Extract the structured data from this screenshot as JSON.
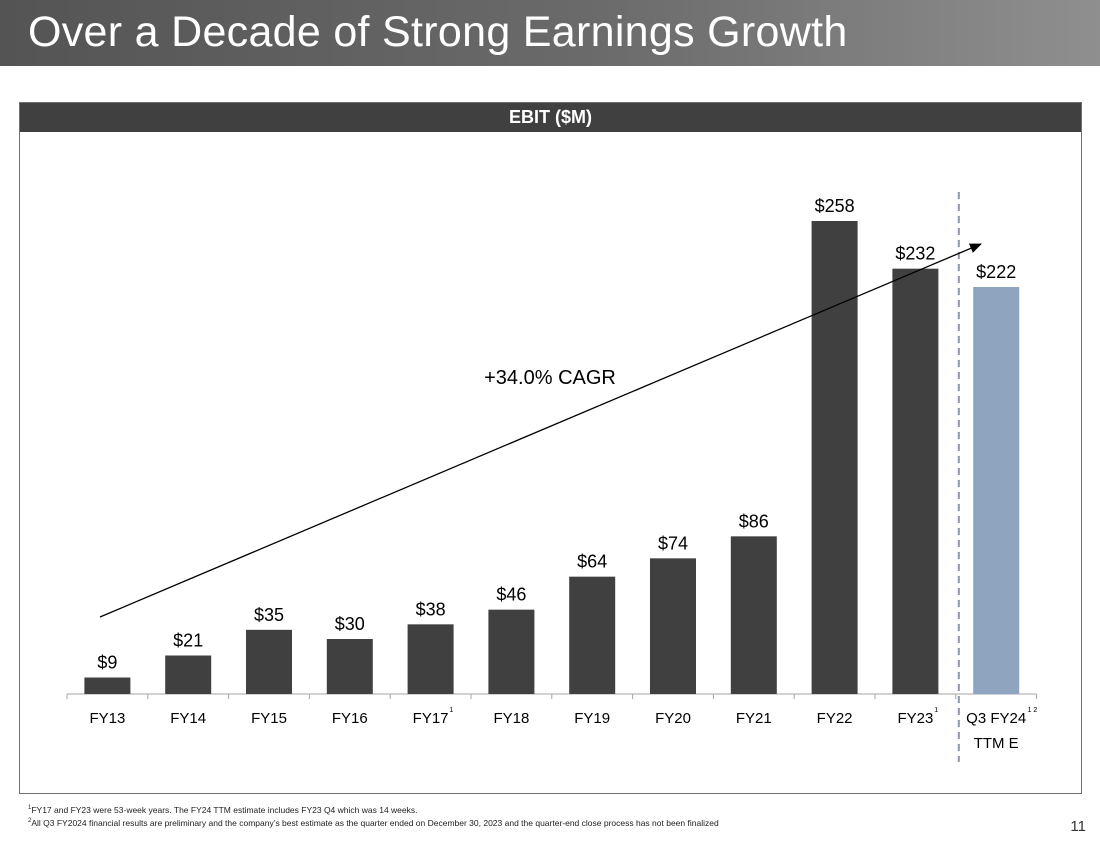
{
  "slide": {
    "title": "Over a Decade of Strong Earnings Growth",
    "page_number": "11"
  },
  "footnotes": [
    {
      "marker": "1",
      "text": "FY17 and FY23 were 53-week years. The FY24 TTM estimate includes FY23 Q4 which was 14 weeks."
    },
    {
      "marker": "2",
      "text": "All Q3 FY2024 financial results are preliminary and the company’s best estimate as the quarter ended on December 30, 2023 and the quarter-end close process has not been finalized"
    }
  ],
  "colors": {
    "bar_actual": "#404040",
    "bar_estimate": "#8fa4be",
    "divider": "#8c96a6",
    "axis": "#a6a6a6"
  },
  "chart_data": {
    "type": "bar",
    "title": "EBIT ($M)",
    "xlabel": "",
    "ylabel": "",
    "ylim": [
      0,
      258
    ],
    "grid": false,
    "legend": "none",
    "categories": [
      "FY13",
      "FY14",
      "FY15",
      "FY16",
      "FY17",
      "FY18",
      "FY19",
      "FY20",
      "FY21",
      "FY22",
      "FY23",
      "Q3 FY24"
    ],
    "category_sublabels": [
      "",
      "",
      "",
      "",
      "",
      "",
      "",
      "",
      "",
      "",
      "",
      "TTM E"
    ],
    "category_superscripts": [
      "",
      "",
      "",
      "",
      "1",
      "",
      "",
      "",
      "",
      "",
      "1",
      "1 2"
    ],
    "values": [
      9,
      21,
      35,
      30,
      38,
      46,
      64,
      74,
      86,
      258,
      232,
      222
    ],
    "value_labels": [
      "$9",
      "$21",
      "$35",
      "$30",
      "$38",
      "$46",
      "$64",
      "$74",
      "$86",
      "$258",
      "$232",
      "$222"
    ],
    "estimate": [
      false,
      false,
      false,
      false,
      false,
      false,
      false,
      false,
      false,
      false,
      false,
      true
    ],
    "annotations": [
      {
        "type": "arrow",
        "from_category": "FY13",
        "to_category": "Q3 FY24",
        "text": "+34.0% CAGR"
      },
      {
        "type": "divider",
        "between": [
          "FY23",
          "Q3 FY24"
        ],
        "style": "dashed"
      }
    ]
  }
}
